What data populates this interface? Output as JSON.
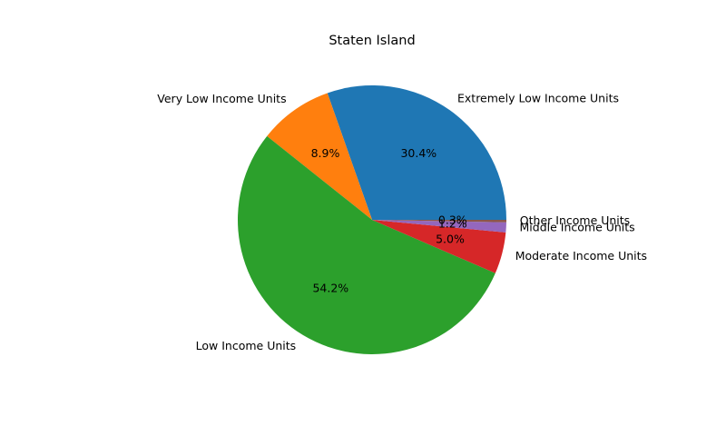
{
  "chart_data": {
    "type": "pie",
    "title": "Staten Island",
    "slices": [
      {
        "label": "Extremely Low Income Units",
        "value": 30.4,
        "pct_label": "30.4%",
        "color": "#1f77b4"
      },
      {
        "label": "Very Low Income Units",
        "value": 8.9,
        "pct_label": "8.9%",
        "color": "#ff7f0e"
      },
      {
        "label": "Low Income Units",
        "value": 54.2,
        "pct_label": "54.2%",
        "color": "#2ca02c"
      },
      {
        "label": "Moderate Income Units",
        "value": 5.0,
        "pct_label": "5.0%",
        "color": "#d62728"
      },
      {
        "label": "Middle Income Units",
        "value": 1.2,
        "pct_label": "1.2%",
        "color": "#9467bd"
      },
      {
        "label": "Other Income Units",
        "value": 0.3,
        "pct_label": "0.3%",
        "color": "#8c564b"
      }
    ],
    "start_angle_deg": 0,
    "direction": "counterclockwise",
    "legend": "none"
  }
}
